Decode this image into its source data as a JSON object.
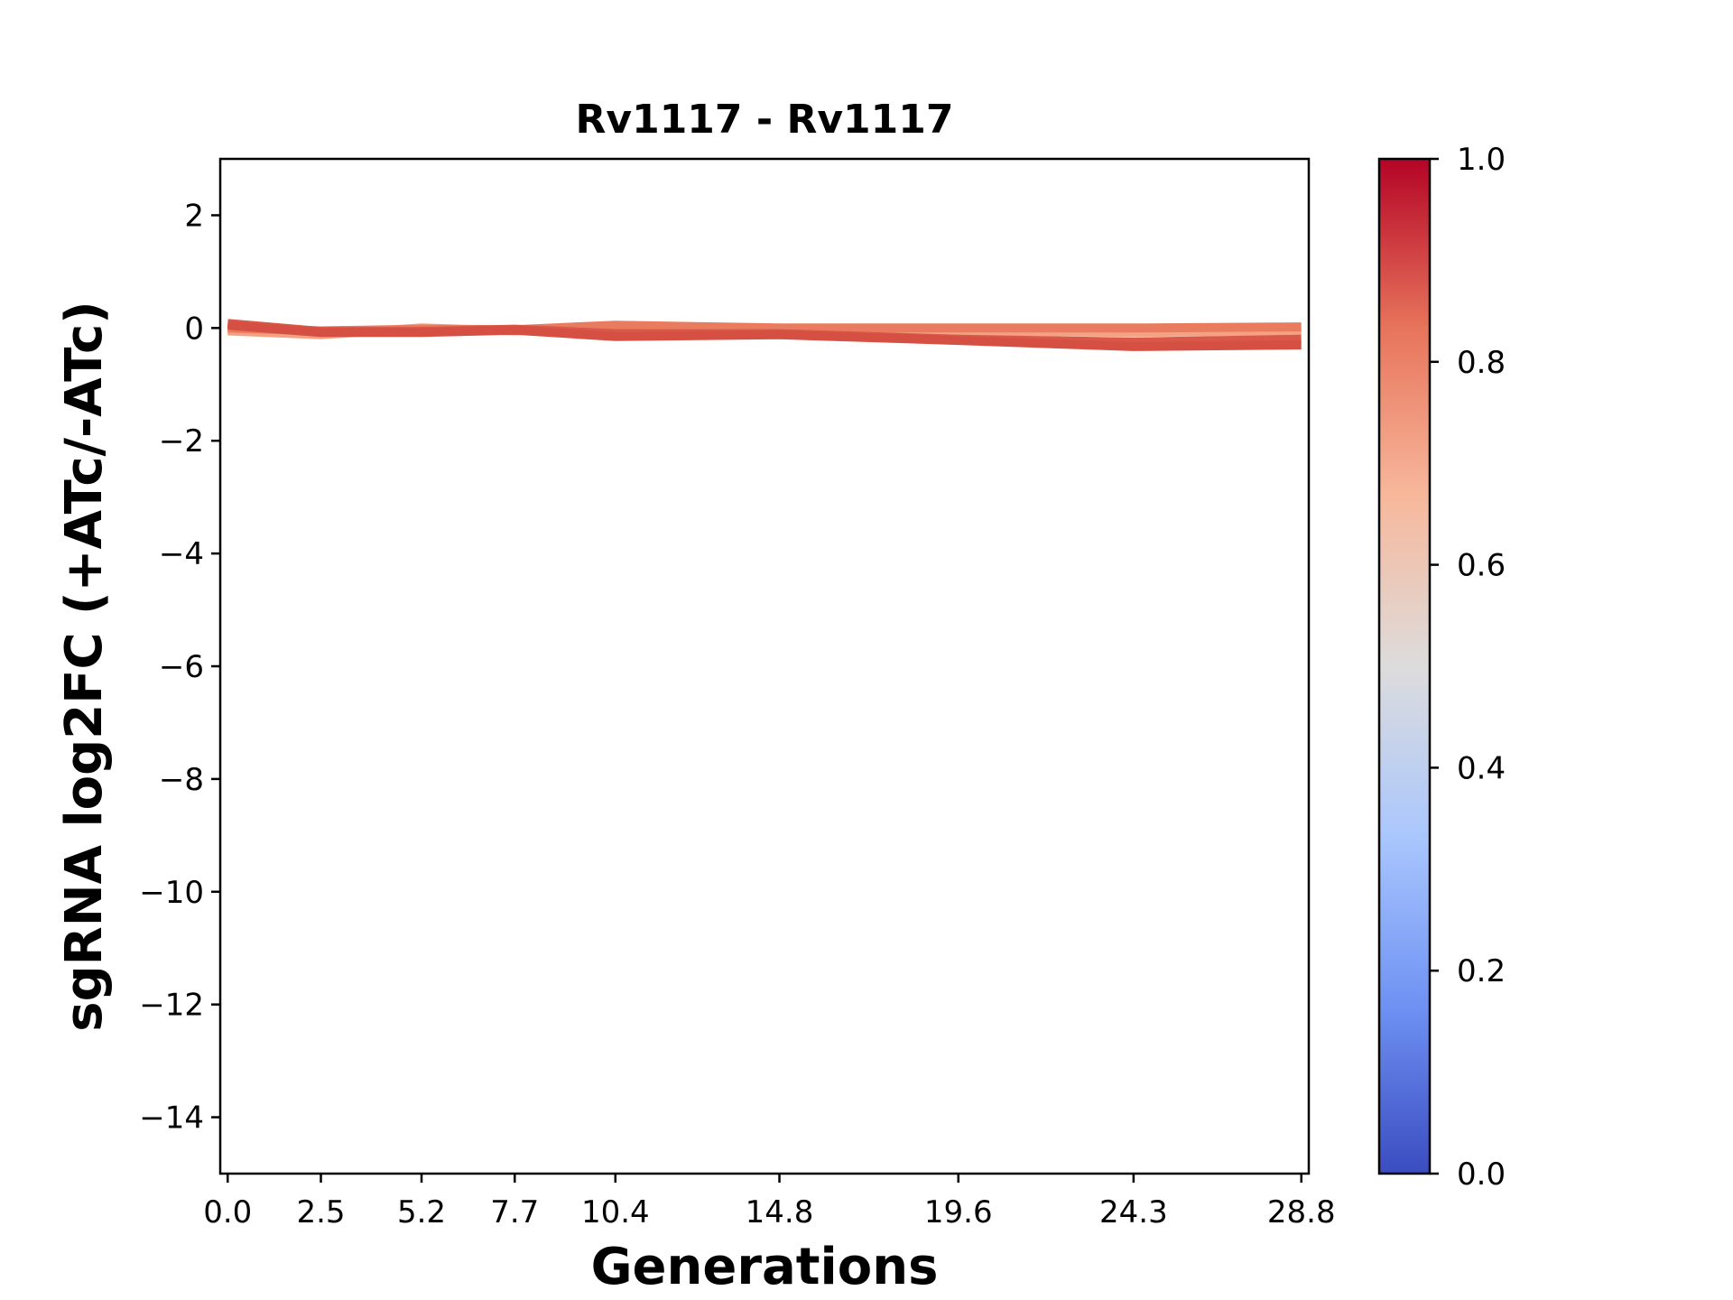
{
  "chart_data": {
    "type": "line",
    "title": "Rv1117 - Rv1117",
    "xlabel": "Generations",
    "ylabel": "sgRNA log2FC (+ATc/-ATc)",
    "x": [
      0.0,
      2.5,
      5.2,
      7.7,
      10.4,
      14.8,
      19.6,
      24.3,
      28.8
    ],
    "x_tick_labels": [
      "0.0",
      "2.5",
      "5.2",
      "7.7",
      "10.4",
      "14.8",
      "19.6",
      "24.3",
      "28.8"
    ],
    "xlim": [
      -0.2,
      29.0
    ],
    "ylim": [
      -15,
      3
    ],
    "y_ticks": [
      2,
      0,
      -2,
      -4,
      -6,
      -8,
      -10,
      -12,
      -14
    ],
    "y_tick_labels": [
      "2",
      "0",
      "−2",
      "−4",
      "−6",
      "−8",
      "−10",
      "−12",
      "−14"
    ],
    "grid": false,
    "series": [
      {
        "values": [
          -0.05,
          -0.12,
          0.0,
          -0.05,
          0.02,
          -0.02,
          -0.05,
          -0.08,
          -0.05
        ],
        "color_value": 0.7,
        "color": "#f4a283"
      },
      {
        "values": [
          0.0,
          -0.05,
          -0.02,
          -0.03,
          0.05,
          0.0,
          0.0,
          0.0,
          0.02
        ],
        "color_value": 0.8,
        "color": "#e97b5f"
      },
      {
        "values": [
          0.08,
          -0.06,
          -0.06,
          -0.02,
          -0.1,
          -0.1,
          -0.2,
          -0.25,
          -0.2
        ],
        "color_value": 0.9,
        "color": "#d95847"
      },
      {
        "values": [
          0.05,
          -0.08,
          -0.08,
          -0.04,
          -0.15,
          -0.12,
          -0.22,
          -0.33,
          -0.3
        ],
        "color_value": 0.92,
        "color": "#d55042"
      }
    ],
    "colorbar": {
      "colormap": "coolwarm",
      "range": [
        0.0,
        1.0
      ],
      "ticks": [
        0.0,
        0.2,
        0.4,
        0.6,
        0.8,
        1.0
      ],
      "tick_labels": [
        "0.0",
        "0.2",
        "0.4",
        "0.6",
        "0.8",
        "1.0"
      ],
      "stops": [
        "#3b4cc0",
        "#6f92f3",
        "#aac7fd",
        "#dddcdc",
        "#f7b89c",
        "#e7745b",
        "#b40426"
      ]
    }
  }
}
